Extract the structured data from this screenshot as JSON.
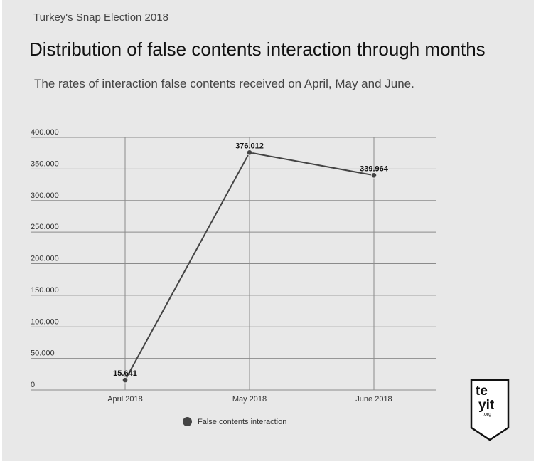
{
  "header": {
    "kicker": "Turkey's Snap Election 2018",
    "title": "Distribution of false contents interaction through months",
    "subtitle": "The rates of interaction false contents received on April, May and June."
  },
  "logo": {
    "line1": "te",
    "line2": "yit",
    "line3": ".org"
  },
  "legend": {
    "label": "False contents interaction"
  },
  "colors": {
    "background": "#e8e8e8",
    "series": "#444444",
    "grid": "#8a8a8a"
  },
  "chart_data": {
    "type": "line",
    "title": "Distribution of false contents interaction through months",
    "subtitle": "The rates of interaction false contents received on April, May and June.",
    "xlabel": "",
    "ylabel": "",
    "categories": [
      "April 2018",
      "May 2018",
      "June 2018"
    ],
    "series": [
      {
        "name": "False contents interaction",
        "values": [
          15641,
          376012,
          339964
        ],
        "labels": [
          "15.641",
          "376.012",
          "339.964"
        ]
      }
    ],
    "ylim": [
      0,
      400000
    ],
    "yticks": [
      0,
      50000,
      100000,
      150000,
      200000,
      250000,
      300000,
      350000,
      400000
    ],
    "ytick_labels": [
      "0",
      "50.000",
      "100.000",
      "150.000",
      "200.000",
      "250.000",
      "300.000",
      "350.000",
      "400.000"
    ],
    "grid": true,
    "legend_position": "bottom-left"
  }
}
